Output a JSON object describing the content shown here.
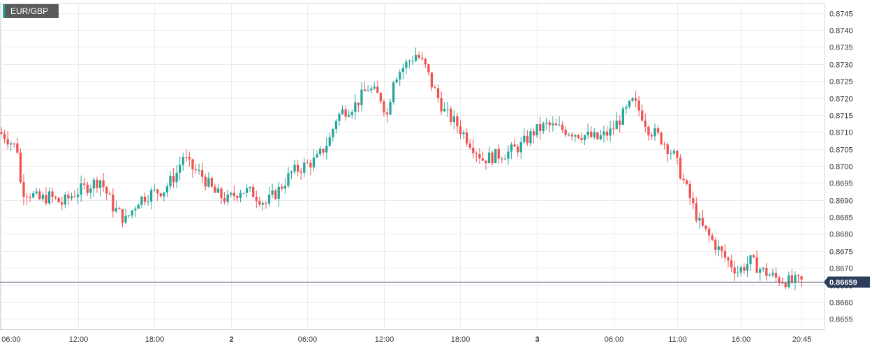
{
  "symbol": "EUR/GBP",
  "last_price_label": "0.86659",
  "colors": {
    "up": "#26a69a",
    "down": "#ef5350",
    "grid": "#ececf0",
    "price_line": "#2e3d5c",
    "badge": "#2e3d5c"
  },
  "chart_data": {
    "type": "candlestick",
    "title": "EUR/GBP",
    "ylim": [
      0.8652,
      0.8748
    ],
    "y_ticks": [
      "0.8745",
      "0.8740",
      "0.8735",
      "0.8730",
      "0.8725",
      "0.8720",
      "0.8715",
      "0.8710",
      "0.8705",
      "0.8700",
      "0.8695",
      "0.8690",
      "0.8685",
      "0.8680",
      "0.8675",
      "0.8670",
      "0.8665",
      "0.8660",
      "0.8655"
    ],
    "x_ticks": [
      {
        "label": "06:00",
        "t": 0,
        "bold": false
      },
      {
        "label": "12:00",
        "t": 6,
        "bold": false
      },
      {
        "label": "18:00",
        "t": 12,
        "bold": false
      },
      {
        "label": "2",
        "t": 18,
        "bold": true
      },
      {
        "label": "06:00",
        "t": 24,
        "bold": false
      },
      {
        "label": "12:00",
        "t": 30,
        "bold": false
      },
      {
        "label": "18:00",
        "t": 36,
        "bold": false
      },
      {
        "label": "3",
        "t": 42,
        "bold": true
      },
      {
        "label": "06:00",
        "t": 48,
        "bold": false
      },
      {
        "label": "11:00",
        "t": 53,
        "bold": false
      },
      {
        "label": "16:00",
        "t": 58,
        "bold": false
      },
      {
        "label": "20:45",
        "t": 62.75,
        "bold": false
      }
    ],
    "x_range_hours": [
      0,
      64.5
    ],
    "last_price": 0.86659,
    "path": [
      [
        0,
        0.871
      ],
      [
        0.5,
        0.8709
      ],
      [
        1,
        0.8707
      ],
      [
        1.5,
        0.8705
      ],
      [
        1.8,
        0.8693
      ],
      [
        2.5,
        0.8692
      ],
      [
        3.2,
        0.869
      ],
      [
        4,
        0.8691
      ],
      [
        5,
        0.8689
      ],
      [
        6,
        0.8692
      ],
      [
        7,
        0.8694
      ],
      [
        8,
        0.8696
      ],
      [
        8.5,
        0.8692
      ],
      [
        9,
        0.8688
      ],
      [
        10,
        0.8684
      ],
      [
        11,
        0.869
      ],
      [
        12,
        0.8692
      ],
      [
        13,
        0.8693
      ],
      [
        14,
        0.8698
      ],
      [
        14.5,
        0.8703
      ],
      [
        15,
        0.87
      ],
      [
        16,
        0.8697
      ],
      [
        17,
        0.8692
      ],
      [
        18,
        0.869
      ],
      [
        19,
        0.8693
      ],
      [
        20,
        0.8692
      ],
      [
        21,
        0.8689
      ],
      [
        22,
        0.8693
      ],
      [
        23,
        0.8698
      ],
      [
        24,
        0.87
      ],
      [
        25,
        0.8702
      ],
      [
        26,
        0.8708
      ],
      [
        26.5,
        0.8714
      ],
      [
        27,
        0.8716
      ],
      [
        28,
        0.8718
      ],
      [
        29,
        0.8723
      ],
      [
        30,
        0.872
      ],
      [
        30.5,
        0.8715
      ],
      [
        31,
        0.8726
      ],
      [
        32,
        0.873
      ],
      [
        32.8,
        0.8733
      ],
      [
        33.5,
        0.8729
      ],
      [
        34,
        0.8724
      ],
      [
        35,
        0.8716
      ],
      [
        36,
        0.8712
      ],
      [
        37,
        0.8707
      ],
      [
        38,
        0.8702
      ],
      [
        39,
        0.8703
      ],
      [
        40,
        0.8704
      ],
      [
        41,
        0.8706
      ],
      [
        42,
        0.871
      ],
      [
        43,
        0.8712
      ],
      [
        44,
        0.8711
      ],
      [
        45,
        0.871
      ],
      [
        46,
        0.8709
      ],
      [
        47,
        0.8708
      ],
      [
        48,
        0.871
      ],
      [
        49,
        0.8715
      ],
      [
        49.8,
        0.8719
      ],
      [
        50.5,
        0.8715
      ],
      [
        51,
        0.8711
      ],
      [
        52,
        0.8708
      ],
      [
        53,
        0.8703
      ],
      [
        54,
        0.8693
      ],
      [
        55,
        0.8683
      ],
      [
        56,
        0.8678
      ],
      [
        57,
        0.8673
      ],
      [
        58,
        0.8669
      ],
      [
        59,
        0.8672
      ],
      [
        60,
        0.8669
      ],
      [
        61,
        0.8667
      ],
      [
        62,
        0.8666
      ],
      [
        62.75,
        0.86659
      ]
    ]
  }
}
